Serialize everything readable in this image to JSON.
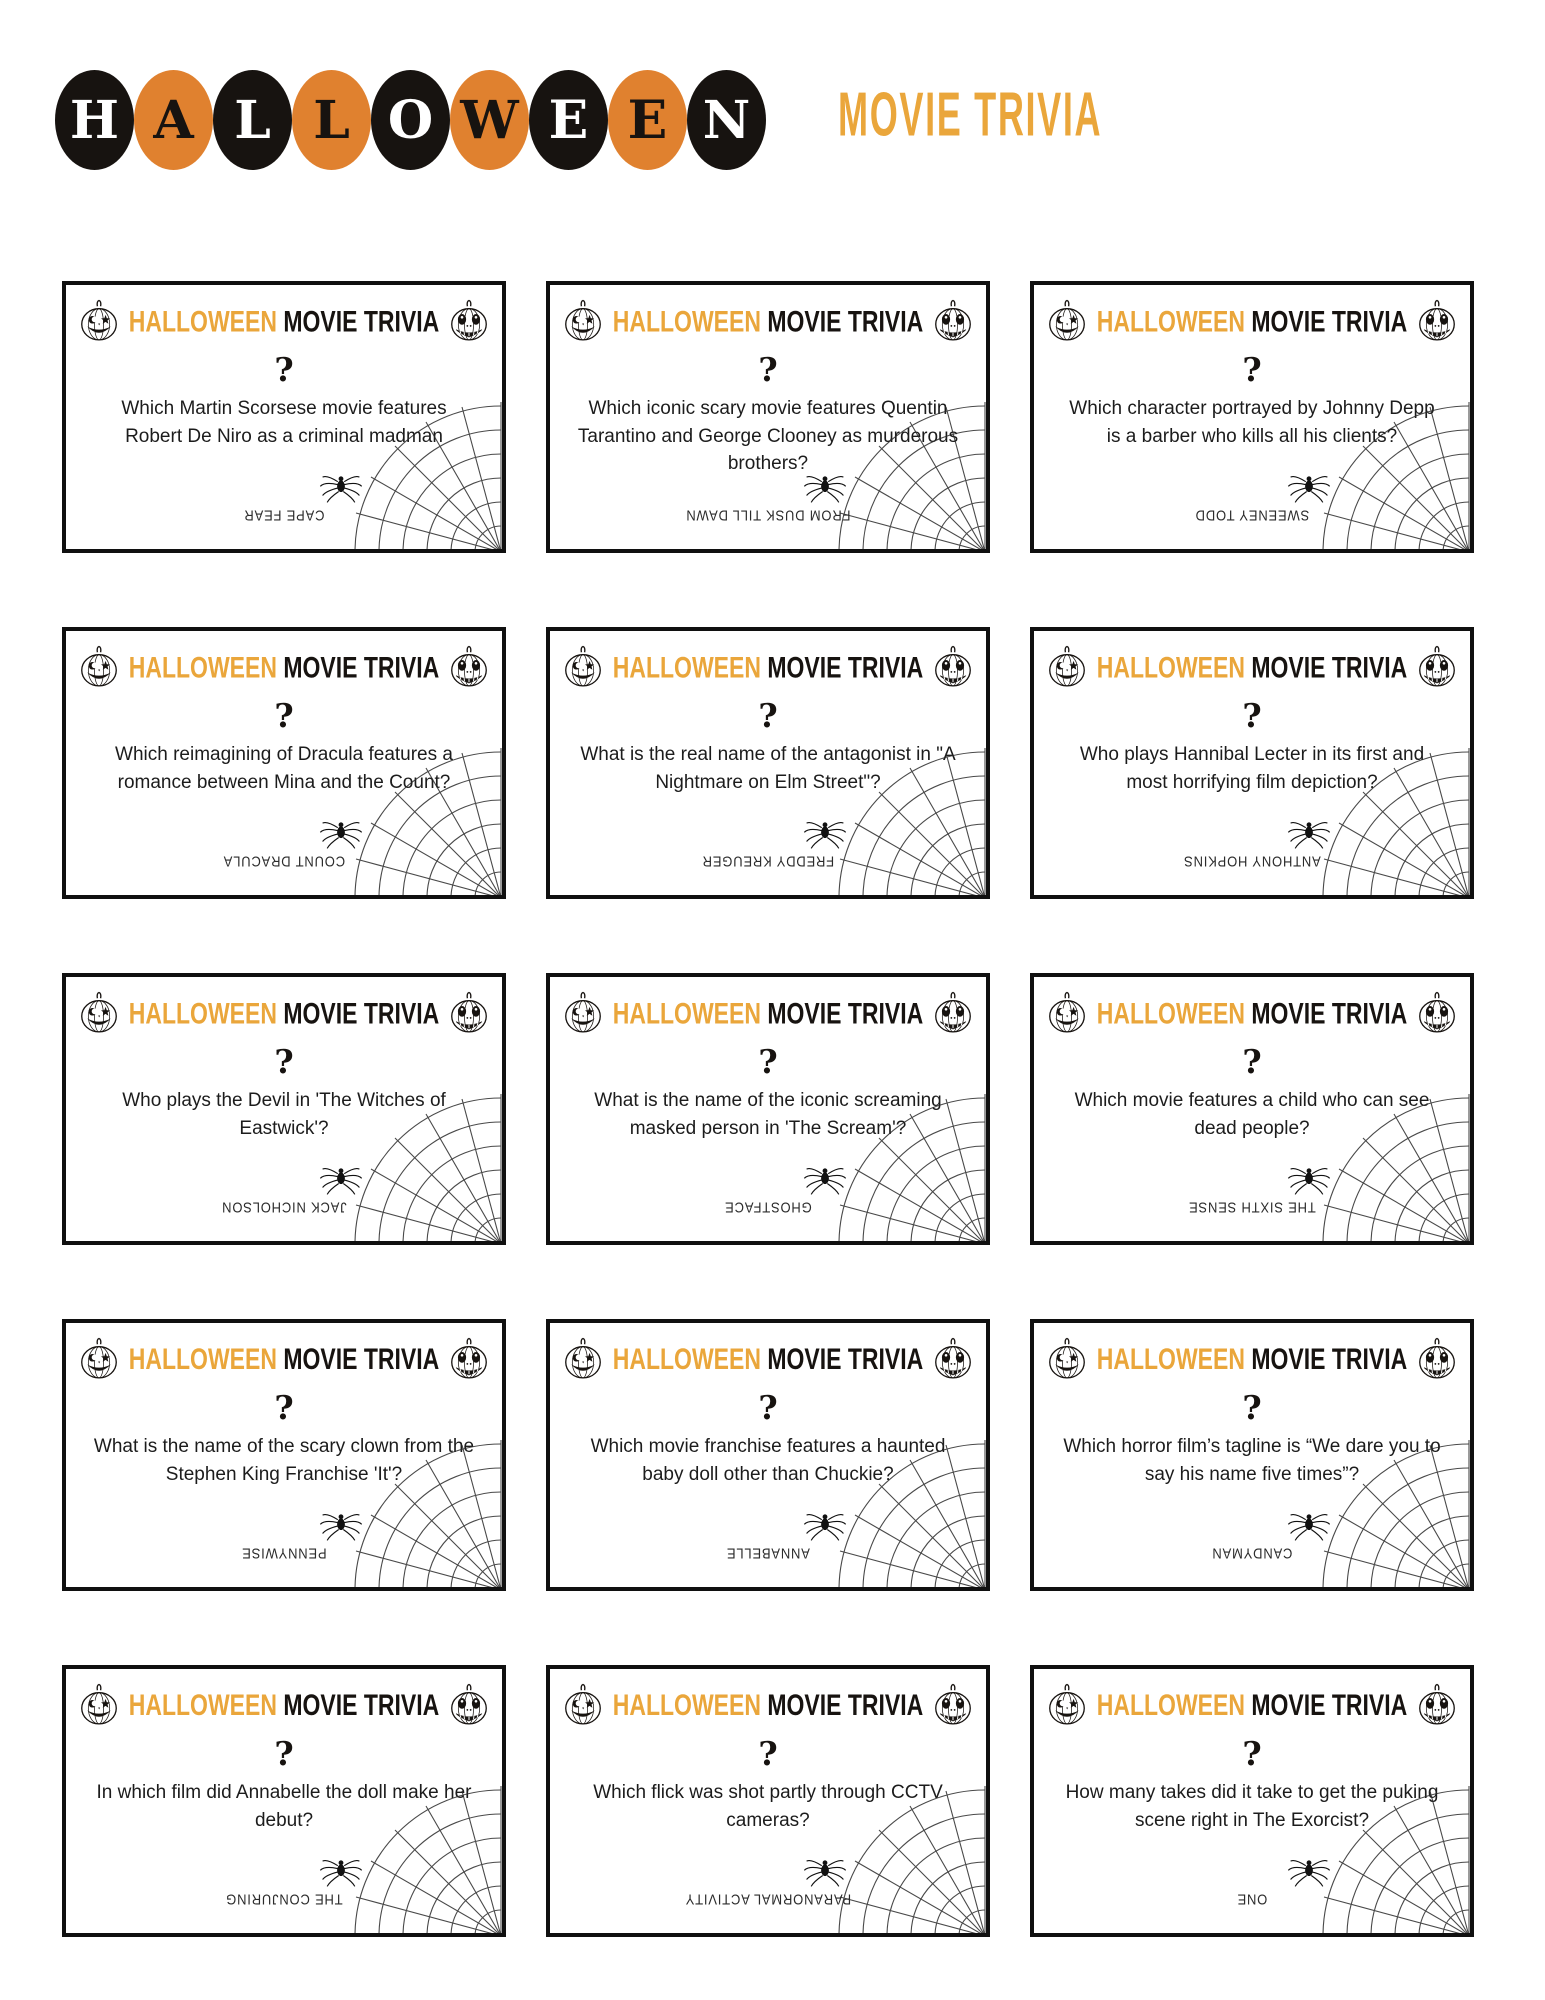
{
  "page_title": {
    "halloween_letters": [
      "H",
      "A",
      "L",
      "L",
      "O",
      "W",
      "E",
      "E",
      "N"
    ],
    "subtitle": "MOVIE TRIVIA"
  },
  "card_header": {
    "halloween": "HALLOWEEN",
    "movie_trivia": "MOVIE TRIVIA",
    "question_mark": "?"
  },
  "icons": {
    "left": "pumpkin-happy-star-eye-icon",
    "right": "pumpkin-scary-skull-icon",
    "corner": "spiderweb-icon",
    "bug": "spider-icon"
  },
  "colors": {
    "circle_orange": "#E0812F",
    "golden_orange": "#EAA63B",
    "ink_black": "#171310"
  },
  "cards": [
    {
      "question": "Which Martin Scorsese movie features Robert De Niro as a criminal madman",
      "answer": "CAPE FEAR"
    },
    {
      "question": "Which iconic scary movie features Quentin Tarantino and George Clooney as murderous brothers?",
      "answer": "FROM DUSK TILL DAWN"
    },
    {
      "question": "Which character portrayed by Johnny Depp is a barber who kills all his clients?",
      "answer": "SWEENEY TODD"
    },
    {
      "question": "Which reimagining of Dracula features a romance between Mina and the Count?",
      "answer": "COUNT DRACULA"
    },
    {
      "question": "What is the real name of the antagonist in \"A Nightmare on Elm Street\"?",
      "answer": "FREDDY KREUGER"
    },
    {
      "question": "Who plays Hannibal Lecter in its first and most horrifying film depiction?",
      "answer": "ANTHONY HOPKINS"
    },
    {
      "question": "Who plays the Devil in 'The Witches of Eastwick'?",
      "answer": "JACK NICHOLSON"
    },
    {
      "question": "What is the name of the iconic screaming masked person in 'The Scream'?",
      "answer": "GHOSTFACE"
    },
    {
      "question": "Which movie features a child who can see dead people?",
      "answer": "THE SIXTH SENSE"
    },
    {
      "question": "What is the name of the scary clown from the Stephen King Franchise 'It'?",
      "answer": "PENNYWISE"
    },
    {
      "question": "Which movie franchise features a haunted baby doll other than Chuckie?",
      "answer": "ANNABELLE"
    },
    {
      "question": "Which horror film’s tagline is “We dare you to say his name five times”?",
      "answer": "CANDYMAN"
    },
    {
      "question": "In which film did Annabelle the doll make her debut?",
      "answer": "THE CONJURING"
    },
    {
      "question": "Which flick was shot partly through CCTV cameras?",
      "answer": "PARANORMAL ACTIVITY"
    },
    {
      "question": "How many takes did it take to get the puking scene right in The Exorcist?",
      "answer": "ONE"
    }
  ]
}
